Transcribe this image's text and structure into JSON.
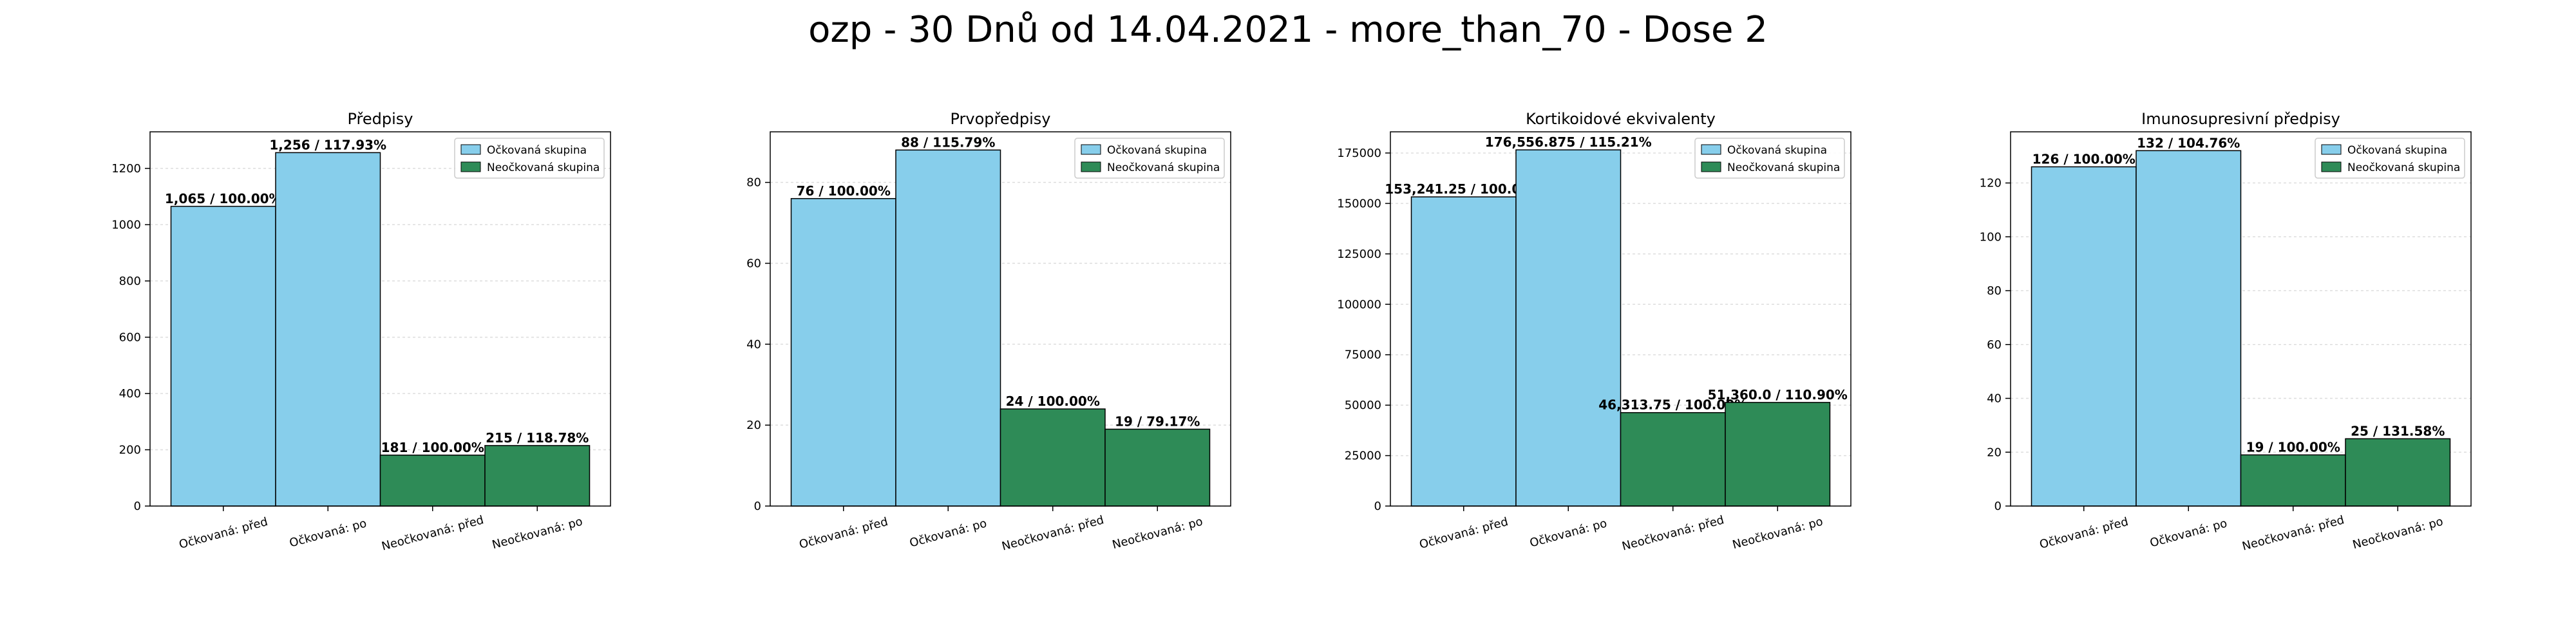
{
  "figure_title": "ozp - 30 Dnů od 14.04.2021 - more_than_70 - Dose 2",
  "colors": {
    "vaccinated": "#87CEEB",
    "unvaccinated": "#2E8B57",
    "edge": "#000000",
    "grid": "#dddddd"
  },
  "chart_data": [
    {
      "type": "bar",
      "title": "Předpisy",
      "categories": [
        "Očkovaná: před",
        "Očkovaná: po",
        "Neočkovaná: před",
        "Neočkovaná: po"
      ],
      "values": [
        1065,
        1256,
        181,
        215
      ],
      "series_of_bar": [
        "vaccinated",
        "vaccinated",
        "unvaccinated",
        "unvaccinated"
      ],
      "data_labels": [
        "1,065 / 100.00%",
        "1,256 / 117.93%",
        "181 / 100.00%",
        "215 / 118.78%"
      ],
      "ylim": [
        0,
        1330
      ],
      "yticks": [
        0,
        200,
        400,
        600,
        800,
        1000,
        1200
      ],
      "ytick_labels": [
        "0",
        "200",
        "400",
        "600",
        "800",
        "1000",
        "1200"
      ],
      "legend": [
        "Očkovaná skupina",
        "Neočkovaná skupina"
      ],
      "legend_position": "top-right",
      "grid": true
    },
    {
      "type": "bar",
      "title": "Prvopředpisy",
      "categories": [
        "Očkovaná: před",
        "Očkovaná: po",
        "Neočkovaná: před",
        "Neočkovaná: po"
      ],
      "values": [
        76,
        88,
        24,
        19
      ],
      "series_of_bar": [
        "vaccinated",
        "vaccinated",
        "unvaccinated",
        "unvaccinated"
      ],
      "data_labels": [
        "76 / 100.00%",
        "88 / 115.79%",
        "24 / 100.00%",
        "19 / 79.17%"
      ],
      "ylim": [
        0,
        92.5
      ],
      "yticks": [
        0,
        20,
        40,
        60,
        80
      ],
      "ytick_labels": [
        "0",
        "20",
        "40",
        "60",
        "80"
      ],
      "legend": [
        "Očkovaná skupina",
        "Neočkovaná skupina"
      ],
      "legend_position": "top-right",
      "grid": true
    },
    {
      "type": "bar",
      "title": "Kortikoidové ekvivalenty",
      "categories": [
        "Očkovaná: před",
        "Očkovaná: po",
        "Neočkovaná: před",
        "Neočkovaná: po"
      ],
      "values": [
        153241.25,
        176556.875,
        46313.75,
        51360.0
      ],
      "series_of_bar": [
        "vaccinated",
        "vaccinated",
        "unvaccinated",
        "unvaccinated"
      ],
      "data_labels": [
        "153,241.25 / 100.00%",
        "176,556.875 / 115.21%",
        "46,313.75 / 100.00%",
        "51,360.0 / 110.90%"
      ],
      "ylim": [
        0,
        185500
      ],
      "yticks": [
        0,
        25000,
        50000,
        75000,
        100000,
        125000,
        150000,
        175000
      ],
      "ytick_labels": [
        "0",
        "25000",
        "50000",
        "75000",
        "100000",
        "125000",
        "150000",
        "175000"
      ],
      "legend": [
        "Očkovaná skupina",
        "Neočkovaná skupina"
      ],
      "legend_position": "top-right",
      "grid": true
    },
    {
      "type": "bar",
      "title": "Imunosupresivní předpisy",
      "categories": [
        "Očkovaná: před",
        "Očkovaná: po",
        "Neočkovaná: před",
        "Neočkovaná: po"
      ],
      "values": [
        126,
        132,
        19,
        25
      ],
      "series_of_bar": [
        "vaccinated",
        "vaccinated",
        "unvaccinated",
        "unvaccinated"
      ],
      "data_labels": [
        "126 / 100.00%",
        "132 / 104.76%",
        "19 / 100.00%",
        "25 / 131.58%"
      ],
      "ylim": [
        0,
        139
      ],
      "yticks": [
        0,
        20,
        40,
        60,
        80,
        100,
        120
      ],
      "ytick_labels": [
        "0",
        "20",
        "40",
        "60",
        "80",
        "100",
        "120"
      ],
      "legend": [
        "Očkovaná skupina",
        "Neočkovaná skupina"
      ],
      "legend_position": "top-right",
      "grid": true
    }
  ]
}
